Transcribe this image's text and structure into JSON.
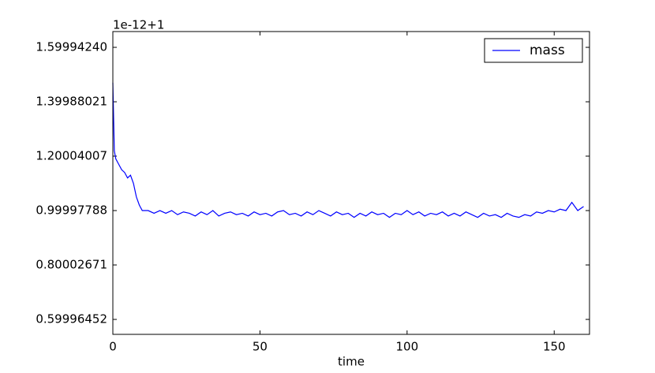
{
  "chart_data": {
    "type": "line",
    "x_label": "time",
    "offset_text": "1e-12+1",
    "x": [
      0,
      0.5,
      1,
      2,
      3,
      4,
      5,
      6,
      7,
      8,
      9,
      10,
      12,
      14,
      16,
      18,
      20,
      22,
      24,
      26,
      28,
      30,
      32,
      34,
      36,
      38,
      40,
      42,
      44,
      46,
      48,
      50,
      52,
      54,
      56,
      58,
      60,
      62,
      64,
      66,
      68,
      70,
      72,
      74,
      76,
      78,
      80,
      82,
      84,
      86,
      88,
      90,
      92,
      94,
      96,
      98,
      100,
      102,
      104,
      106,
      108,
      110,
      112,
      114,
      116,
      118,
      120,
      122,
      124,
      126,
      128,
      130,
      132,
      134,
      136,
      138,
      140,
      142,
      144,
      146,
      148,
      150,
      152,
      154,
      156,
      158,
      160
    ],
    "series": [
      {
        "name": "mass",
        "color": "#0000ff",
        "values": [
          1.47,
          1.22,
          1.19,
          1.17,
          1.15,
          1.14,
          1.12,
          1.13,
          1.1,
          1.05,
          1.02,
          1.0,
          1.0,
          0.99,
          1.0,
          0.99,
          1.0,
          0.985,
          0.995,
          0.99,
          0.98,
          0.995,
          0.985,
          1.0,
          0.98,
          0.99,
          0.995,
          0.985,
          0.99,
          0.98,
          0.995,
          0.985,
          0.99,
          0.98,
          0.995,
          1.0,
          0.985,
          0.99,
          0.98,
          0.995,
          0.985,
          1.0,
          0.99,
          0.98,
          0.995,
          0.985,
          0.99,
          0.975,
          0.99,
          0.98,
          0.995,
          0.985,
          0.99,
          0.975,
          0.99,
          0.985,
          1.0,
          0.985,
          0.995,
          0.98,
          0.99,
          0.985,
          0.995,
          0.98,
          0.99,
          0.98,
          0.995,
          0.985,
          0.975,
          0.99,
          0.98,
          0.985,
          0.975,
          0.99,
          0.98,
          0.975,
          0.985,
          0.98,
          0.995,
          0.99,
          1.0,
          0.995,
          1.005,
          1.0,
          1.03,
          1.0,
          1.015
        ]
      }
    ],
    "xlim": [
      0,
      162
    ],
    "ylim": [
      0.545,
      1.658
    ],
    "xticks": [
      0,
      50,
      100,
      150
    ],
    "yticks": [
      {
        "value": 0.59996452,
        "label": "0.59996452"
      },
      0.80002671,
      0.99997788,
      1.20004007,
      1.39988021,
      {
        "value": 1.5999424,
        "label": "1.59994240"
      }
    ],
    "legend": "upper right"
  }
}
